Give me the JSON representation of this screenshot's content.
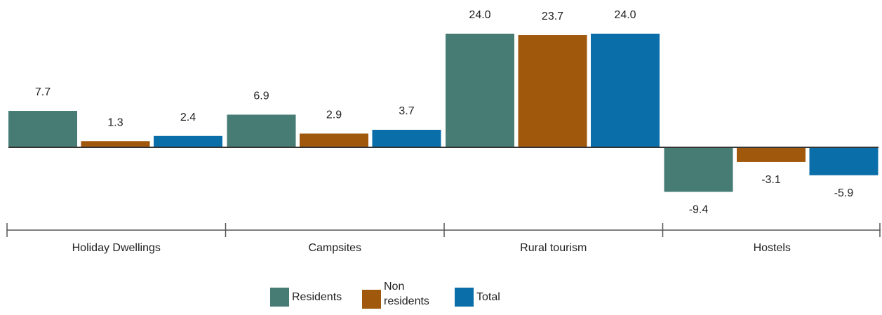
{
  "chart_data": {
    "type": "bar",
    "categories": [
      "Holiday Dwellings",
      "Campsites",
      "Rural tourism",
      "Hostels"
    ],
    "series": [
      {
        "name": "Residents",
        "color": "#467c74",
        "values": [
          7.7,
          6.9,
          24.0,
          -9.4
        ],
        "labels": [
          "7.7",
          "6.9",
          "24.0",
          "-9.4"
        ]
      },
      {
        "name": "Non residents",
        "color": "#a0580c",
        "values": [
          1.3,
          2.9,
          23.7,
          -3.1
        ],
        "labels": [
          "1.3",
          "2.9",
          "23.7",
          "-3.1"
        ]
      },
      {
        "name": "Total",
        "color": "#0a6ea8",
        "values": [
          2.4,
          3.7,
          24.0,
          -5.9
        ],
        "labels": [
          "2.4",
          "3.7",
          "24.0",
          "-5.9"
        ]
      }
    ],
    "grid": false,
    "legend_position": "bottom-center"
  },
  "legend": {
    "residents": "Residents",
    "non_residents_line1": "Non",
    "non_residents_line2": "residents",
    "total": "Total"
  }
}
